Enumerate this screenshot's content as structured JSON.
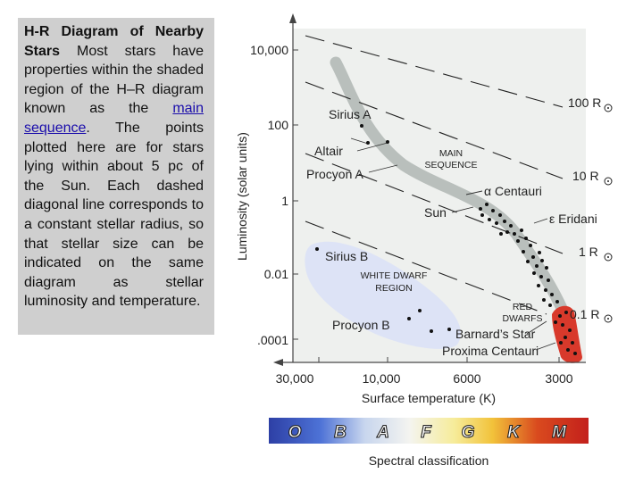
{
  "caption": {
    "title": "H-R Diagram of Nearby Stars",
    "text_before_link": "Most stars have properties within the shaded region of the H–R diagram known as the",
    "link_text": "main sequence",
    "text_after_link": ". The points plotted here are for stars lying within about 5 pc of the Sun. Each dashed diagonal line corresponds to a constant stellar radius, so that stellar size can be indicated on the same diagram as stellar luminosity and temperature."
  },
  "diagram": {
    "y_axis_label": "Luminosity (solar units)",
    "x_axis_label": "Surface temperature (K)",
    "y_ticks": [
      "10,000",
      "100",
      "1",
      "0.01",
      ".0001"
    ],
    "x_ticks": [
      "30,000",
      "10,000",
      "6000",
      "3000"
    ],
    "radius_lines": [
      "100 R",
      "10 R",
      "1 R",
      "0.1 R"
    ],
    "region_labels": {
      "main_sequence": [
        "MAIN",
        "SEQUENCE"
      ],
      "white_dwarf": [
        "WHITE DWARF",
        "REGION"
      ],
      "red_dwarfs": [
        "RED",
        "DWARFS"
      ]
    },
    "star_labels": {
      "sirius_a": "Sirius A",
      "altair": "Altair",
      "procyon_a": "Procyon A",
      "alpha_centauri": "α Centauri",
      "sun": "Sun",
      "epsilon_eridani": "ε Eridani",
      "sirius_b": "Sirius B",
      "procyon_b": "Procyon B",
      "barnards_star": "Barnard’s Star",
      "proxima_centauri": "Proxima Centauri"
    },
    "spectral_classes": [
      "O",
      "B",
      "A",
      "F",
      "G",
      "K",
      "M"
    ],
    "spectral_label": "Spectral classification",
    "colors": {
      "main_sequence_band": "#b9bfbc",
      "white_dwarf_region": "#dde3f6",
      "red_dwarf_region": "#d8392b",
      "star_dot": "#111111"
    }
  }
}
